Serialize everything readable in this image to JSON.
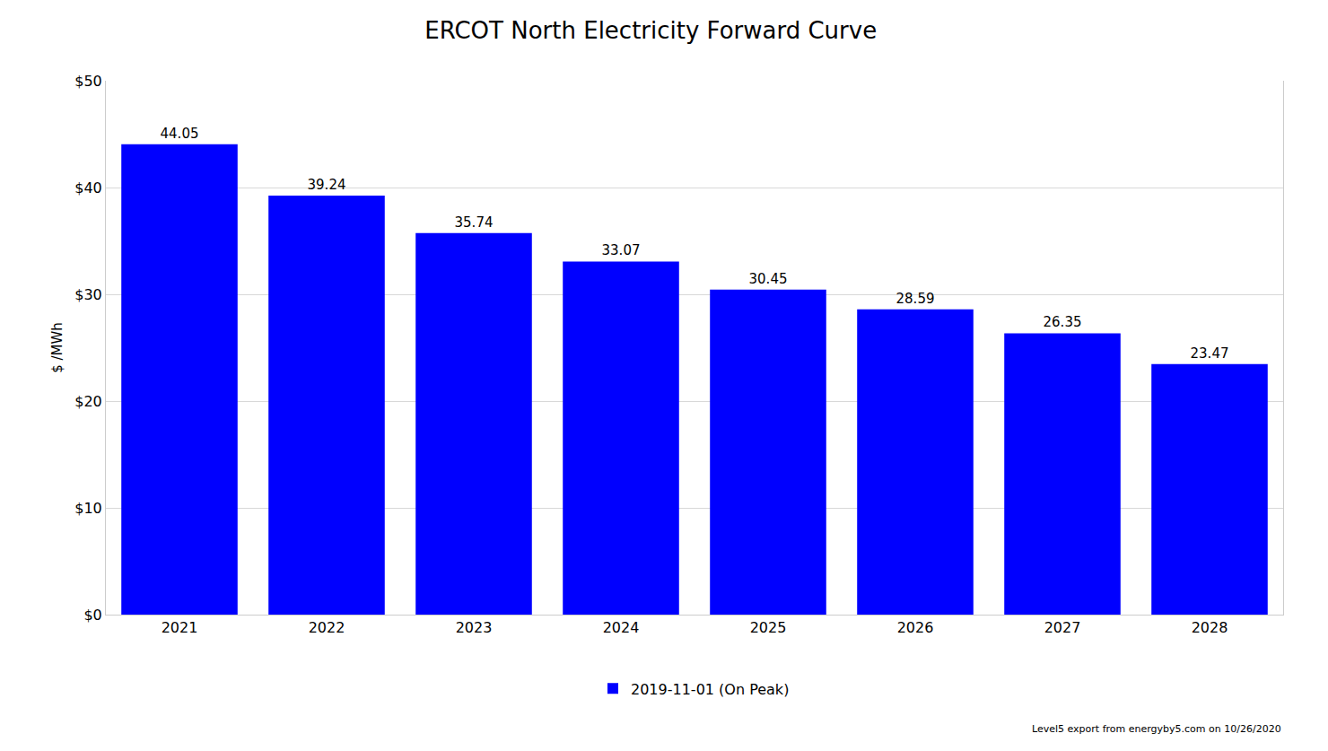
{
  "chart_data": {
    "type": "bar",
    "title": "ERCOT North Electricity Forward Curve",
    "y_label": "$ /MWh",
    "categories": [
      "2021",
      "2022",
      "2023",
      "2024",
      "2025",
      "2026",
      "2027",
      "2028"
    ],
    "series": [
      {
        "name": "2019-11-01 (On Peak)",
        "color": "#0000ff",
        "values": [
          44.05,
          39.24,
          35.74,
          33.07,
          30.45,
          28.59,
          26.35,
          23.47
        ]
      }
    ],
    "ylim": [
      0,
      50
    ],
    "yticks": [
      {
        "value": 0,
        "label": "$0"
      },
      {
        "value": 10,
        "label": "$10"
      },
      {
        "value": 20,
        "label": "$20"
      },
      {
        "value": 30,
        "label": "$30"
      },
      {
        "value": 40,
        "label": "$40"
      },
      {
        "value": 50,
        "label": "$50"
      }
    ],
    "grid": true,
    "legend": "bottom",
    "data_labels": true,
    "annotations": [
      "Level5 export from energyby5.com on 10/26/2020"
    ]
  }
}
